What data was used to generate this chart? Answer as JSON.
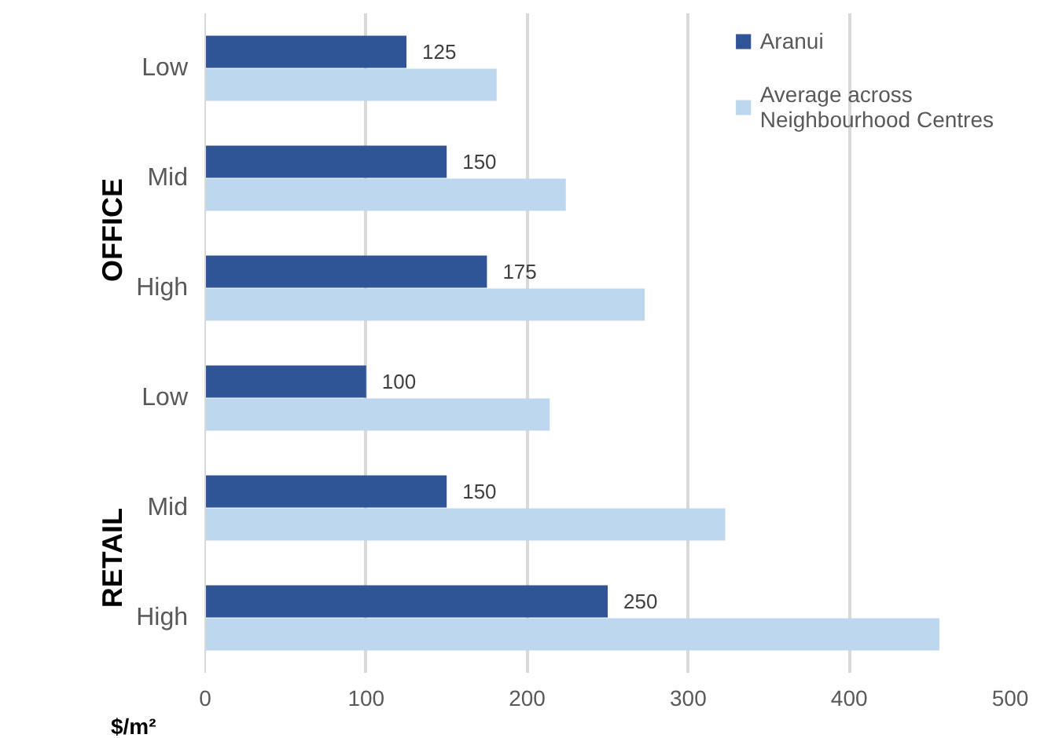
{
  "chart_data": {
    "type": "bar",
    "orientation": "horizontal",
    "categories": [
      "Low",
      "Mid",
      "High",
      "Low",
      "Mid",
      "High"
    ],
    "series": [
      {
        "name": "Aranui",
        "color": "#2f5597",
        "values": [
          125,
          150,
          175,
          100,
          150,
          250
        ],
        "value_labels": [
          "125",
          "150",
          "175",
          "100",
          "150",
          "250"
        ]
      },
      {
        "name": "Average across Neighbourhood Centres",
        "color": "#bdd7ee",
        "values": [
          181,
          224,
          273,
          214,
          323,
          456
        ]
      }
    ],
    "annotations": [
      "OFFICE",
      "RETAIL"
    ],
    "xlabel": "$/m²",
    "xlim": [
      0,
      500
    ],
    "xticks": [
      0,
      100,
      200,
      300,
      400,
      500
    ],
    "grid": "x",
    "legend": "top right"
  }
}
